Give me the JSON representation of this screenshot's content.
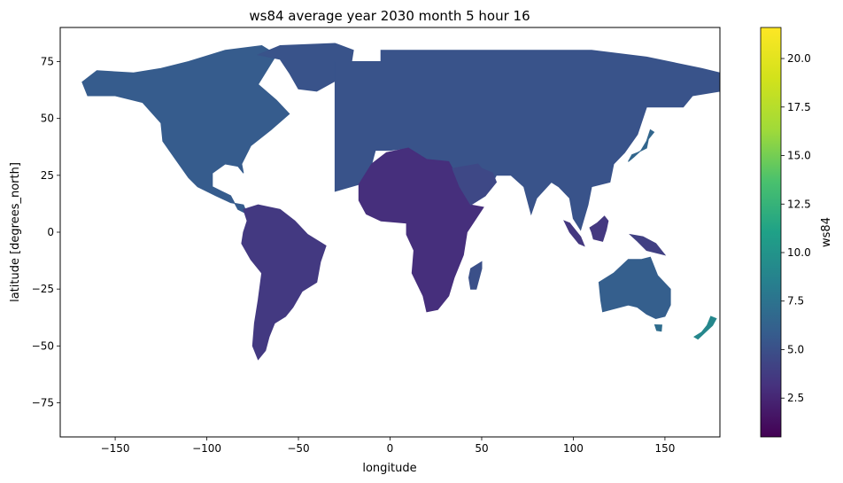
{
  "chart_data": {
    "type": "heatmap",
    "title": "ws84 average year 2030 month 5 hour 16",
    "xlabel": "longitude",
    "ylabel": "latitude [degrees_north]",
    "xlim": [
      -180,
      180
    ],
    "ylim": [
      -90,
      90
    ],
    "x_ticks": [
      -150,
      -100,
      -50,
      0,
      50,
      100,
      150
    ],
    "y_ticks": [
      -75,
      -50,
      -25,
      0,
      25,
      50,
      75
    ],
    "x_tick_labels": [
      "−150",
      "−100",
      "−50",
      "0",
      "50",
      "100",
      "150"
    ],
    "y_tick_labels": [
      "−75",
      "−50",
      "−25",
      "0",
      "25",
      "50",
      "75"
    ],
    "colormap": "viridis",
    "colorbar": {
      "label": "ws84",
      "vmin": 0.5,
      "vmax": 21.6,
      "ticks": [
        2.5,
        5.0,
        7.5,
        10.0,
        12.5,
        15.0,
        17.5,
        20.0
      ],
      "tick_labels": [
        "2.5",
        "5.0",
        "7.5",
        "10.0",
        "12.5",
        "15.0",
        "17.5",
        "20.0"
      ]
    },
    "grid": false,
    "regions": [
      {
        "name": "North America",
        "value": 5.8,
        "lonlat": [
          [
            -168,
            66
          ],
          [
            -160,
            71
          ],
          [
            -140,
            70
          ],
          [
            -125,
            72
          ],
          [
            -110,
            75
          ],
          [
            -90,
            80
          ],
          [
            -70,
            82
          ],
          [
            -62,
            78
          ],
          [
            -72,
            65
          ],
          [
            -62,
            58
          ],
          [
            -55,
            52
          ],
          [
            -65,
            45
          ],
          [
            -76,
            38
          ],
          [
            -81,
            30
          ],
          [
            -80,
            26
          ],
          [
            -83,
            29
          ],
          [
            -90,
            30
          ],
          [
            -97,
            26
          ],
          [
            -97,
            20
          ],
          [
            -92,
            18
          ],
          [
            -87,
            16
          ],
          [
            -83,
            10
          ],
          [
            -78,
            8
          ],
          [
            -80,
            12
          ],
          [
            -87,
            13
          ],
          [
            -95,
            16
          ],
          [
            -105,
            20
          ],
          [
            -110,
            24
          ],
          [
            -117,
            32
          ],
          [
            -124,
            40
          ],
          [
            -125,
            48
          ],
          [
            -135,
            57
          ],
          [
            -150,
            60
          ],
          [
            -165,
            60
          ]
        ]
      },
      {
        "name": "Greenland",
        "value": 5.2,
        "lonlat": [
          [
            -72,
            78
          ],
          [
            -60,
            82
          ],
          [
            -30,
            83
          ],
          [
            -20,
            80
          ],
          [
            -22,
            70
          ],
          [
            -40,
            62
          ],
          [
            -50,
            63
          ],
          [
            -55,
            70
          ],
          [
            -60,
            76
          ]
        ]
      },
      {
        "name": "South America",
        "value": 3.6,
        "lonlat": [
          [
            -80,
            10
          ],
          [
            -72,
            12
          ],
          [
            -60,
            10
          ],
          [
            -52,
            5
          ],
          [
            -45,
            -1
          ],
          [
            -35,
            -6
          ],
          [
            -38,
            -13
          ],
          [
            -40,
            -22
          ],
          [
            -48,
            -26
          ],
          [
            -53,
            -33
          ],
          [
            -57,
            -37
          ],
          [
            -63,
            -40
          ],
          [
            -66,
            -46
          ],
          [
            -68,
            -52
          ],
          [
            -72,
            -56
          ],
          [
            -75,
            -50
          ],
          [
            -74,
            -40
          ],
          [
            -72,
            -30
          ],
          [
            -70,
            -18
          ],
          [
            -76,
            -12
          ],
          [
            -81,
            -5
          ],
          [
            -80,
            0
          ],
          [
            -78,
            5
          ]
        ]
      },
      {
        "name": "Europe-Asia block",
        "value": 5.2,
        "lonlat": [
          [
            -30,
            18
          ],
          [
            -30,
            75
          ],
          [
            -5,
            75
          ],
          [
            -5,
            80
          ],
          [
            60,
            80
          ],
          [
            110,
            80
          ],
          [
            140,
            77
          ],
          [
            170,
            72
          ],
          [
            180,
            70
          ],
          [
            180,
            62
          ],
          [
            165,
            60
          ],
          [
            160,
            55
          ],
          [
            140,
            55
          ],
          [
            135,
            43
          ],
          [
            128,
            35
          ],
          [
            122,
            30
          ],
          [
            120,
            22
          ],
          [
            110,
            20
          ],
          [
            108,
            12
          ],
          [
            104,
            1
          ],
          [
            100,
            6
          ],
          [
            98,
            15
          ],
          [
            92,
            20
          ],
          [
            88,
            22
          ],
          [
            80,
            15
          ],
          [
            77,
            8
          ],
          [
            73,
            20
          ],
          [
            66,
            25
          ],
          [
            58,
            25
          ],
          [
            52,
            16
          ],
          [
            44,
            12
          ],
          [
            42,
            16
          ],
          [
            34,
            28
          ],
          [
            32,
            31
          ],
          [
            20,
            32
          ],
          [
            10,
            37
          ],
          [
            0,
            36
          ],
          [
            -8,
            36
          ],
          [
            -10,
            30
          ],
          [
            -17,
            21
          ]
        ]
      },
      {
        "name": "Africa",
        "value": 3.0,
        "lonlat": [
          [
            -17,
            21
          ],
          [
            -10,
            30
          ],
          [
            -2,
            35
          ],
          [
            10,
            37
          ],
          [
            20,
            32
          ],
          [
            32,
            31
          ],
          [
            34,
            28
          ],
          [
            38,
            20
          ],
          [
            44,
            12
          ],
          [
            51,
            11
          ],
          [
            42,
            0
          ],
          [
            40,
            -10
          ],
          [
            35,
            -20
          ],
          [
            32,
            -28
          ],
          [
            26,
            -34
          ],
          [
            20,
            -35
          ],
          [
            18,
            -28
          ],
          [
            12,
            -18
          ],
          [
            13,
            -8
          ],
          [
            9,
            -1
          ],
          [
            9,
            4
          ],
          [
            -5,
            5
          ],
          [
            -13,
            8
          ],
          [
            -17,
            14
          ]
        ]
      },
      {
        "name": "Madagascar",
        "value": 5.0,
        "lonlat": [
          [
            44,
            -16
          ],
          [
            50,
            -13
          ],
          [
            50,
            -16
          ],
          [
            47,
            -25
          ],
          [
            44,
            -25
          ],
          [
            43,
            -20
          ]
        ]
      },
      {
        "name": "Arabia",
        "value": 4.5,
        "lonlat": [
          [
            34,
            28
          ],
          [
            38,
            20
          ],
          [
            44,
            12
          ],
          [
            52,
            16
          ],
          [
            58,
            22
          ],
          [
            56,
            26
          ],
          [
            50,
            28
          ],
          [
            48,
            30
          ]
        ]
      },
      {
        "name": "Australia",
        "value": 6.0,
        "lonlat": [
          [
            114,
            -22
          ],
          [
            122,
            -18
          ],
          [
            130,
            -12
          ],
          [
            137,
            -12
          ],
          [
            142,
            -11
          ],
          [
            146,
            -19
          ],
          [
            153,
            -25
          ],
          [
            153,
            -32
          ],
          [
            150,
            -37
          ],
          [
            145,
            -38
          ],
          [
            140,
            -36
          ],
          [
            135,
            -33
          ],
          [
            130,
            -32
          ],
          [
            116,
            -35
          ],
          [
            115,
            -30
          ]
        ]
      },
      {
        "name": "Tasmania",
        "value": 7.0,
        "lonlat": [
          [
            144.5,
            -40.7
          ],
          [
            148.3,
            -40.8
          ],
          [
            148,
            -43.5
          ],
          [
            145.5,
            -43.2
          ]
        ]
      },
      {
        "name": "Borneo",
        "value": 3.5,
        "lonlat": [
          [
            109,
            2
          ],
          [
            113,
            4
          ],
          [
            117,
            7
          ],
          [
            119,
            5
          ],
          [
            118,
            1
          ],
          [
            116,
            -4
          ],
          [
            111,
            -3
          ],
          [
            110,
            0
          ]
        ]
      },
      {
        "name": "Sumatra",
        "value": 3.5,
        "lonlat": [
          [
            95,
            5
          ],
          [
            98,
            4
          ],
          [
            104,
            -2
          ],
          [
            106,
            -6
          ],
          [
            103,
            -5
          ],
          [
            98,
            0
          ]
        ]
      },
      {
        "name": "New Guinea",
        "value": 4.0,
        "lonlat": [
          [
            131,
            -1
          ],
          [
            138,
            -2
          ],
          [
            145,
            -5
          ],
          [
            150,
            -10
          ],
          [
            145,
            -9
          ],
          [
            140,
            -8
          ],
          [
            135,
            -4
          ]
        ]
      },
      {
        "name": "Japan",
        "value": 6.5,
        "lonlat": [
          [
            130,
            31
          ],
          [
            132,
            34
          ],
          [
            135,
            35
          ],
          [
            140,
            37
          ],
          [
            141,
            41
          ],
          [
            144,
            44
          ],
          [
            142,
            45
          ],
          [
            140,
            40
          ],
          [
            137,
            36
          ],
          [
            133,
            33
          ]
        ]
      },
      {
        "name": "New Zealand",
        "value": 9.0,
        "lonlat": [
          [
            166,
            -46
          ],
          [
            170,
            -44
          ],
          [
            173,
            -41
          ],
          [
            175,
            -37
          ],
          [
            178,
            -38
          ],
          [
            176,
            -41
          ],
          [
            172,
            -44
          ],
          [
            168,
            -47
          ]
        ]
      }
    ]
  }
}
